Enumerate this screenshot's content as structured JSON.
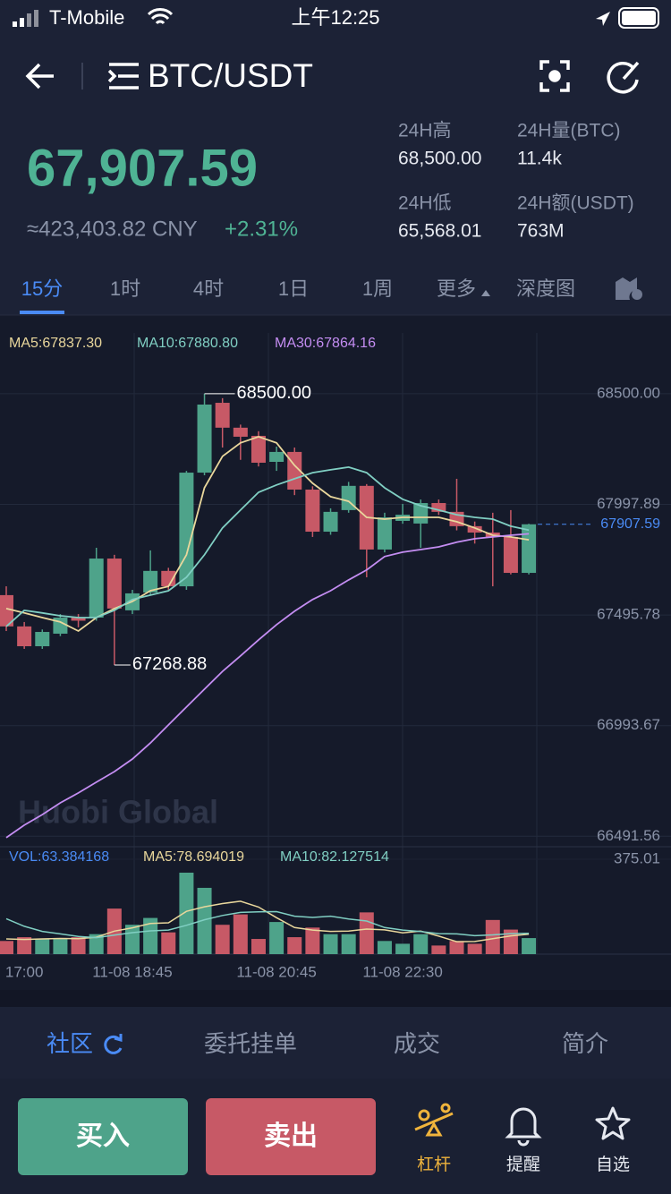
{
  "status_bar": {
    "carrier": "T-Mobile",
    "time": "上午12:25"
  },
  "header": {
    "pair": "BTC/USDT"
  },
  "ticker": {
    "price": "67,907.59",
    "cny": "≈423,403.82 CNY",
    "change": "+2.31%",
    "stats": [
      {
        "label": "24H高",
        "value": "68,500.00"
      },
      {
        "label": "24H量(BTC)",
        "value": "11.4k"
      },
      {
        "label": "24H低",
        "value": "65,568.01"
      },
      {
        "label": "24H额(USDT)",
        "value": "763M"
      }
    ]
  },
  "timeframes": [
    "15分",
    "1时",
    "4时",
    "1日",
    "1周",
    "更多",
    "深度图"
  ],
  "watermark": "Huobi Global",
  "chart_data": [
    {
      "type": "candlestick",
      "up_color": "#4ea38a",
      "down_color": "#c75966",
      "categories": [
        null,
        "17:00",
        null,
        null,
        null,
        null,
        null,
        "11-08 18:45",
        null,
        null,
        null,
        null,
        null,
        null,
        null,
        "11-08 20:45",
        null,
        null,
        null,
        null,
        null,
        null,
        "11-08 22:30",
        null,
        null,
        null,
        null,
        null,
        null,
        null
      ],
      "open": [
        67586,
        67444,
        67354,
        67411,
        67484,
        67484,
        67752,
        67517,
        67598,
        67696,
        67626,
        68142,
        68459,
        68346,
        68309,
        68191,
        68236,
        68065,
        67874,
        67972,
        68082,
        67793,
        67923,
        67911,
        68004,
        67964,
        67899,
        67870,
        67850,
        67687
      ],
      "high": [
        67626,
        67464,
        67430,
        67500,
        67500,
        67801,
        67769,
        67610,
        67789,
        67710,
        68150,
        68500,
        68480,
        68360,
        68330,
        68260,
        68256,
        68080,
        67980,
        68100,
        68090,
        67960,
        68000,
        68020,
        68020,
        68114,
        67920,
        67960,
        67972,
        67910
      ],
      "low": [
        67423,
        67342,
        67342,
        67400,
        67440,
        67470,
        67268.88,
        67500,
        67590,
        67610,
        67610,
        68130,
        68256,
        68200,
        68170,
        68150,
        68040,
        67850,
        67860,
        67960,
        67667,
        67780,
        67910,
        67801,
        67950,
        67880,
        67820,
        67626,
        67680,
        67680
      ],
      "close": [
        67444,
        67354,
        67419,
        67484,
        67470,
        67752,
        67525,
        67594,
        67696,
        67626,
        68142,
        68451,
        68346,
        68305,
        68187,
        68236,
        68065,
        67874,
        67964,
        68082,
        67793,
        67939,
        67951,
        68004,
        67964,
        67899,
        67870,
        67850,
        67687,
        67907.59
      ],
      "series": [
        {
          "name": "MA5:67837.30",
          "color": "#e9d79c",
          "values": [
            67525,
            67505,
            67484,
            67464,
            67423,
            67484,
            67525,
            67557,
            67606,
            67626,
            67769,
            68073,
            68216,
            68277,
            68305,
            68277,
            68175,
            68094,
            68033,
            68012,
            67939,
            67931,
            67939,
            67939,
            67939,
            67919,
            67891,
            67858,
            67850,
            67837.3
          ]
        },
        {
          "name": "MA10:67880.80",
          "color": "#80cfc3",
          "values": [
            67444,
            67517,
            67505,
            67492,
            67484,
            67484,
            67517,
            67566,
            67586,
            67606,
            67667,
            67769,
            67891,
            67972,
            68053,
            68086,
            68114,
            68142,
            68155,
            68167,
            68142,
            68073,
            68021,
            67992,
            67972,
            67951,
            67939,
            67931,
            67899,
            67880.8
          ]
        },
        {
          "name": "MA30:67864.16",
          "color": "#c48df2",
          "values": [
            66485,
            66542,
            66590,
            66643,
            66688,
            66737,
            66785,
            66842,
            66915,
            66997,
            67078,
            67159,
            67240,
            67310,
            67383,
            67452,
            67513,
            67566,
            67606,
            67655,
            67700,
            67761,
            67781,
            67793,
            67805,
            67826,
            67842,
            67850,
            67858,
            67864.16
          ]
        }
      ],
      "ylim": [
        66444,
        68776
      ],
      "yticks": [
        {
          "value": 68500,
          "label": "68500.00"
        },
        67997.89,
        67495.78,
        66993.67,
        66491.56
      ],
      "annotations": {
        "high": "68500.00",
        "low": "67268.88",
        "last": "67907.59"
      }
    },
    {
      "type": "bar",
      "name": "VOL:63.384168",
      "values": [
        52,
        67,
        60,
        60,
        67,
        79,
        180,
        116,
        143,
        86,
        322,
        262,
        116,
        157,
        60,
        127,
        67,
        105,
        79,
        79,
        165,
        52,
        41,
        79,
        34,
        52,
        41,
        135,
        97,
        63.384168
      ],
      "series": [
        {
          "name": "MA5:78.694019",
          "color": "#e9d79c",
          "values": [
            60,
            58,
            60,
            62,
            61,
            67,
            91,
            104,
            121,
            124,
            169,
            187,
            200,
            209,
            186,
            144,
            105,
            95,
            90,
            91,
            99,
            96,
            84,
            91,
            71,
            49,
            50,
            61,
            72,
            78.694019
          ]
        },
        {
          "name": "MA10:82.127514",
          "color": "#80cfc3",
          "values": [
            140,
            110,
            90,
            80,
            70,
            65,
            75,
            85,
            92,
            95,
            114,
            136,
            153,
            165,
            167,
            168,
            150,
            145,
            150,
            139,
            131,
            105,
            95,
            89,
            81,
            80,
            73,
            76,
            81,
            82.127514
          ]
        }
      ],
      "ylim": [
        0,
        375.01
      ],
      "yticks": [
        375.01
      ]
    }
  ],
  "tabs": [
    "社区",
    "委托挂单",
    "成交",
    "简介"
  ],
  "actions": {
    "buy": "买入",
    "sell": "卖出"
  },
  "nav": [
    "杠杆",
    "提醒",
    "自选"
  ]
}
